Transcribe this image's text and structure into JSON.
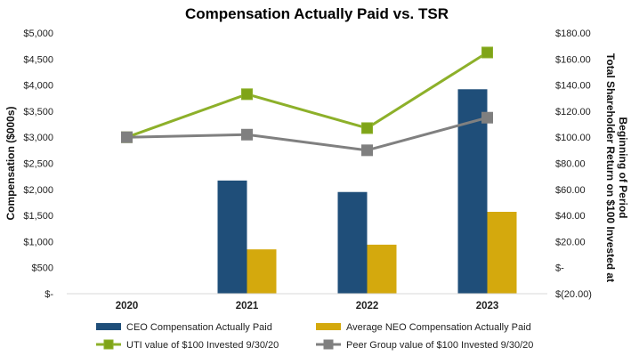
{
  "chart_data": {
    "type": "bar",
    "title": "Compensation Actually Paid vs. TSR",
    "categories": [
      "2020",
      "2021",
      "2022",
      "2023"
    ],
    "xlabel": "",
    "ylabel": "Compensation ($000s)",
    "ylabel_right": [
      "Total Shareholder Return on $100 Invested at",
      "Beginning of Period"
    ],
    "ylim": [
      0,
      5000
    ],
    "ylim_right": [
      -20,
      180
    ],
    "left_ticks": [
      {
        "value": 0,
        "label": "$-"
      },
      {
        "value": 500,
        "label": "$500"
      },
      {
        "value": 1000,
        "label": "$1,000"
      },
      {
        "value": 1500,
        "label": "$1,500"
      },
      {
        "value": 2000,
        "label": "$2,000"
      },
      {
        "value": 2500,
        "label": "$2,500"
      },
      {
        "value": 3000,
        "label": "$3,000"
      },
      {
        "value": 3500,
        "label": "$3,500"
      },
      {
        "value": 4000,
        "label": "$4,000"
      },
      {
        "value": 4500,
        "label": "$4,500"
      },
      {
        "value": 5000,
        "label": "$5,000"
      }
    ],
    "right_ticks": [
      {
        "value": -20,
        "label": "$(20.00)"
      },
      {
        "value": 0,
        "label": "$-"
      },
      {
        "value": 20,
        "label": "$20.00"
      },
      {
        "value": 40,
        "label": "$40.00"
      },
      {
        "value": 60,
        "label": "$60.00"
      },
      {
        "value": 80,
        "label": "$80.00"
      },
      {
        "value": 100,
        "label": "$100.00"
      },
      {
        "value": 120,
        "label": "$120.00"
      },
      {
        "value": 140,
        "label": "$140.00"
      },
      {
        "value": 160,
        "label": "$160.00"
      },
      {
        "value": 180,
        "label": "$180.00"
      }
    ],
    "bar_series": [
      {
        "name": "CEO Compensation Actually Paid",
        "color": "#1F4E79",
        "values": [
          null,
          2170,
          1950,
          3920
        ]
      },
      {
        "name": "Average NEO Compensation Actually Paid",
        "color": "#D4A90D",
        "values": [
          null,
          850,
          940,
          1570
        ]
      }
    ],
    "line_series": [
      {
        "name": "UTI value of $100 Invested 9/30/20",
        "color": "#8DB02A",
        "marker_color": "#7FA418",
        "values": [
          100,
          133,
          107,
          165
        ]
      },
      {
        "name": "Peer Group value of $100 Invested 9/30/20",
        "color": "#808080",
        "marker_color": "#7F7F7F",
        "values": [
          100,
          102,
          90,
          115
        ]
      }
    ],
    "grid": false,
    "legend_position": "bottom"
  }
}
